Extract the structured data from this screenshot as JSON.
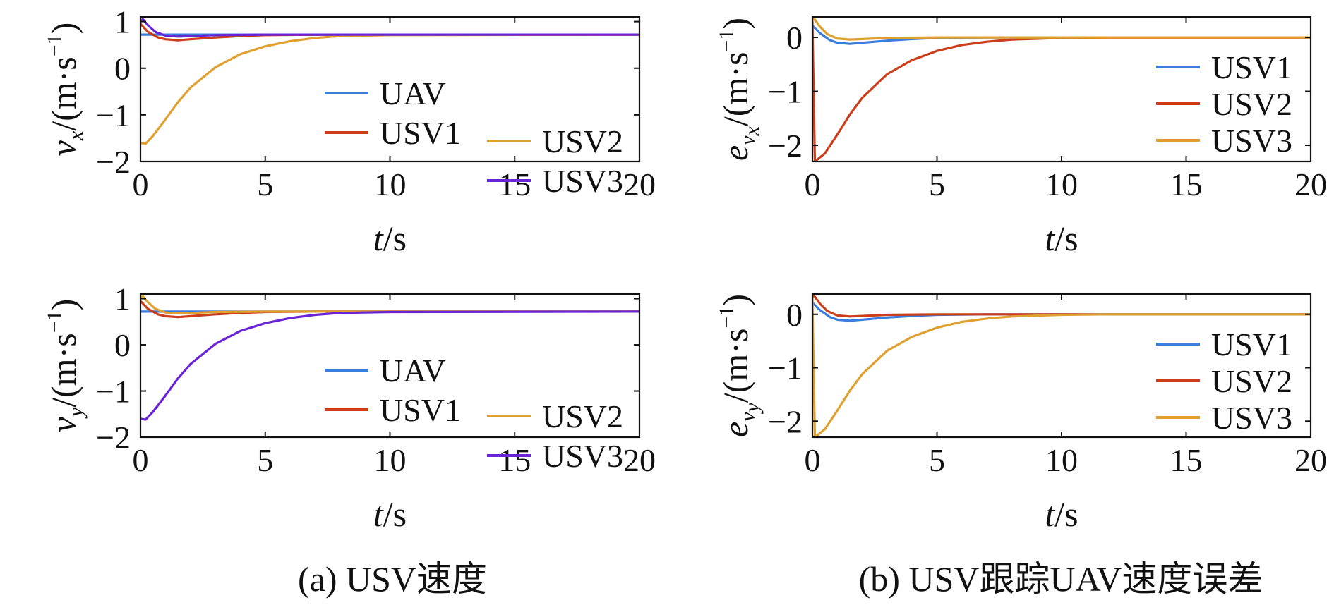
{
  "figure": {
    "caption_a": "(a) USV速度",
    "caption_b": "(b) USV跟踪UAV速度误差"
  },
  "colors": {
    "UAV": "#3b7ddd",
    "USV1": "#cc3d1a",
    "USV2": "#e0a030",
    "USV3": "#6a24d8"
  },
  "chart_data": [
    {
      "id": "vx",
      "type": "line",
      "ylabel": {
        "base": "v",
        "sub": "x",
        "unit": "/(m·s",
        "sup": "−1",
        "close": ")"
      },
      "xlabel": {
        "var": "t",
        "unit": "/s"
      },
      "xlim": [
        0,
        20
      ],
      "ylim": [
        -2,
        1.1
      ],
      "xticks": [
        0,
        5,
        10,
        15,
        20
      ],
      "yticks": [
        -2,
        -1,
        0,
        1
      ],
      "legend": {
        "placement": "lower-right",
        "columns": 2
      },
      "series": [
        {
          "name": "UAV",
          "color": "#3b7ddd",
          "x": [
            0,
            20
          ],
          "y": [
            0.72,
            0.72
          ]
        },
        {
          "name": "USV1",
          "color": "#cc3d1a",
          "x": [
            0,
            0.3,
            0.7,
            1.0,
            1.5,
            2.0,
            3.0,
            4.0,
            5.0,
            7.0,
            10.0,
            20.0
          ],
          "y": [
            0.95,
            0.78,
            0.66,
            0.62,
            0.6,
            0.62,
            0.66,
            0.69,
            0.71,
            0.72,
            0.72,
            0.72
          ]
        },
        {
          "name": "USV2",
          "color": "#e0a030",
          "x": [
            0,
            0.2,
            0.5,
            1.0,
            1.5,
            2.0,
            3.0,
            4.0,
            5.0,
            6.0,
            7.0,
            8.0,
            10.0,
            20.0
          ],
          "y": [
            -1.6,
            -1.62,
            -1.45,
            -1.1,
            -0.73,
            -0.42,
            0.02,
            0.3,
            0.47,
            0.58,
            0.65,
            0.69,
            0.71,
            0.72
          ]
        },
        {
          "name": "USV3",
          "color": "#6a24d8",
          "x": [
            0,
            0.1,
            0.3,
            0.6,
            1.0,
            1.5,
            2.0,
            3.0,
            5.0,
            20.0
          ],
          "y": [
            1.02,
            1.05,
            0.92,
            0.78,
            0.7,
            0.68,
            0.69,
            0.71,
            0.72,
            0.72
          ]
        }
      ]
    },
    {
      "id": "evx",
      "type": "line",
      "ylabel": {
        "base": "e",
        "sub": "v",
        "subsub": "x",
        "unit": "/(m·s",
        "sup": "−1",
        "close": ")"
      },
      "xlabel": {
        "var": "t",
        "unit": "/s"
      },
      "xlim": [
        0,
        20
      ],
      "ylim": [
        -2.3,
        0.38
      ],
      "xticks": [
        0,
        5,
        10,
        15,
        20
      ],
      "yticks": [
        -2,
        -1,
        0
      ],
      "legend": {
        "placement": "right",
        "columns": 1
      },
      "series": [
        {
          "name": "USV1",
          "color": "#3b7ddd",
          "x": [
            0,
            0.3,
            0.7,
            1.0,
            1.5,
            2.0,
            3.0,
            4.0,
            5.0,
            7.0,
            10.0,
            20.0
          ],
          "y": [
            0.22,
            0.08,
            -0.05,
            -0.1,
            -0.12,
            -0.1,
            -0.06,
            -0.03,
            -0.01,
            0,
            0,
            0
          ]
        },
        {
          "name": "USV2",
          "color": "#cc3d1a",
          "x": [
            0,
            0.1,
            0.5,
            1.0,
            1.5,
            2.0,
            3.0,
            4.0,
            5.0,
            6.0,
            7.0,
            8.0,
            10.0,
            12.0,
            20.0
          ],
          "y": [
            0.3,
            -2.3,
            -2.15,
            -1.8,
            -1.43,
            -1.12,
            -0.68,
            -0.42,
            -0.25,
            -0.14,
            -0.08,
            -0.04,
            -0.01,
            0,
            0
          ]
        },
        {
          "name": "USV3",
          "color": "#e0a030",
          "x": [
            0,
            0.1,
            0.3,
            0.6,
            1.0,
            1.5,
            2.0,
            3.0,
            5.0,
            7.0,
            10.0,
            20.0
          ],
          "y": [
            0.35,
            0.33,
            0.2,
            0.06,
            -0.02,
            -0.04,
            -0.03,
            -0.01,
            0,
            0,
            0,
            0
          ]
        }
      ]
    },
    {
      "id": "vy",
      "type": "line",
      "ylabel": {
        "base": "v",
        "sub": "y",
        "unit": "/(m·s",
        "sup": "−1",
        "close": ")"
      },
      "xlabel": {
        "var": "t",
        "unit": "/s"
      },
      "xlim": [
        0,
        20
      ],
      "ylim": [
        -2,
        1.1
      ],
      "xticks": [
        0,
        5,
        10,
        15,
        20
      ],
      "yticks": [
        -2,
        -1,
        0,
        1
      ],
      "legend": {
        "placement": "lower-right",
        "columns": 2
      },
      "series": [
        {
          "name": "UAV",
          "color": "#3b7ddd",
          "x": [
            0,
            20
          ],
          "y": [
            0.72,
            0.72
          ]
        },
        {
          "name": "USV1",
          "color": "#cc3d1a",
          "x": [
            0,
            0.3,
            0.7,
            1.0,
            1.5,
            2.0,
            3.0,
            4.0,
            5.0,
            7.0,
            10.0,
            20.0
          ],
          "y": [
            0.95,
            0.78,
            0.66,
            0.62,
            0.6,
            0.62,
            0.66,
            0.69,
            0.71,
            0.72,
            0.72,
            0.72
          ]
        },
        {
          "name": "USV2",
          "color": "#e0a030",
          "x": [
            0,
            0.1,
            0.3,
            0.6,
            1.0,
            1.5,
            2.0,
            3.0,
            5.0,
            20.0
          ],
          "y": [
            1.02,
            1.05,
            0.92,
            0.78,
            0.7,
            0.68,
            0.69,
            0.71,
            0.72,
            0.72
          ]
        },
        {
          "name": "USV3",
          "color": "#6a24d8",
          "x": [
            0,
            0.2,
            0.5,
            1.0,
            1.5,
            2.0,
            3.0,
            4.0,
            5.0,
            6.0,
            7.0,
            8.0,
            10.0,
            20.0
          ],
          "y": [
            -1.6,
            -1.62,
            -1.45,
            -1.1,
            -0.73,
            -0.42,
            0.02,
            0.3,
            0.47,
            0.58,
            0.65,
            0.69,
            0.71,
            0.72
          ]
        }
      ]
    },
    {
      "id": "evy",
      "type": "line",
      "ylabel": {
        "base": "e",
        "sub": "v",
        "subsub": "y",
        "unit": "/(m·s",
        "sup": "−1",
        "close": ")"
      },
      "xlabel": {
        "var": "t",
        "unit": "/s"
      },
      "xlim": [
        0,
        20
      ],
      "ylim": [
        -2.3,
        0.38
      ],
      "xticks": [
        0,
        5,
        10,
        15,
        20
      ],
      "yticks": [
        -2,
        -1,
        0
      ],
      "legend": {
        "placement": "lower-right",
        "columns": 1
      },
      "series": [
        {
          "name": "USV1",
          "color": "#3b7ddd",
          "x": [
            0,
            0.3,
            0.7,
            1.0,
            1.5,
            2.0,
            3.0,
            4.0,
            5.0,
            7.0,
            10.0,
            20.0
          ],
          "y": [
            0.22,
            0.08,
            -0.05,
            -0.1,
            -0.12,
            -0.1,
            -0.06,
            -0.03,
            -0.01,
            0,
            0,
            0
          ]
        },
        {
          "name": "USV2",
          "color": "#cc3d1a",
          "x": [
            0,
            0.1,
            0.3,
            0.6,
            1.0,
            1.5,
            2.0,
            3.0,
            5.0,
            7.0,
            10.0,
            20.0
          ],
          "y": [
            0.35,
            0.33,
            0.2,
            0.06,
            -0.02,
            -0.04,
            -0.03,
            -0.01,
            0,
            0,
            0,
            0
          ]
        },
        {
          "name": "USV3",
          "color": "#e0a030",
          "x": [
            0,
            0.1,
            0.5,
            1.0,
            1.5,
            2.0,
            3.0,
            4.0,
            5.0,
            6.0,
            7.0,
            8.0,
            10.0,
            12.0,
            20.0
          ],
          "y": [
            0.3,
            -2.3,
            -2.15,
            -1.8,
            -1.43,
            -1.12,
            -0.68,
            -0.42,
            -0.25,
            -0.14,
            -0.08,
            -0.04,
            -0.01,
            0,
            0
          ]
        }
      ]
    }
  ]
}
